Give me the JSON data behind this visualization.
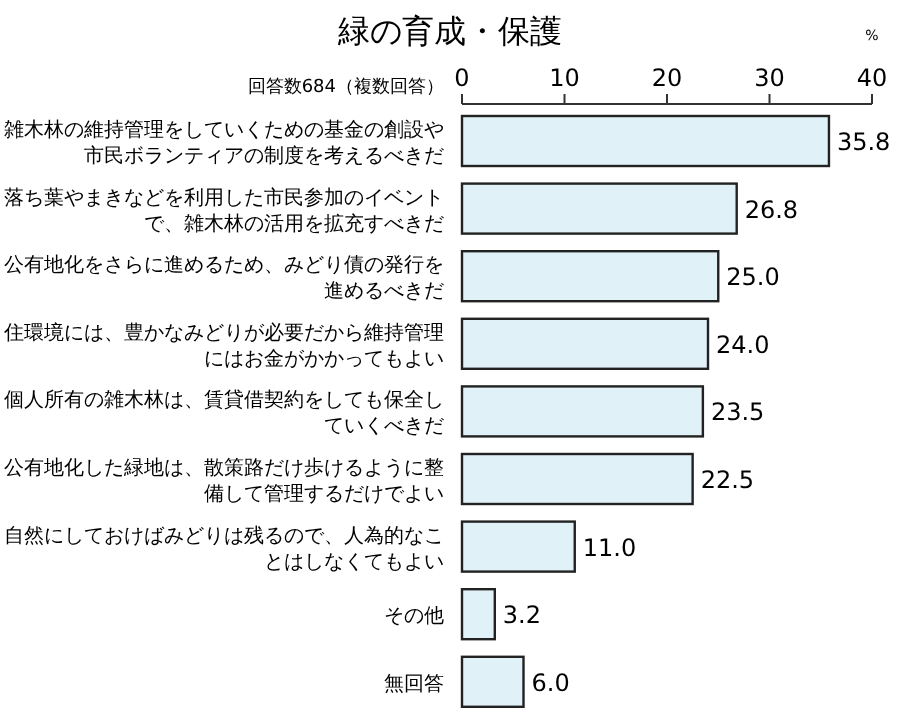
{
  "chart_data": {
    "type": "bar",
    "orientation": "horizontal",
    "title": "緑の育成・保護",
    "xlabel": "%",
    "annotations": [
      "回答数684（複数回答）"
    ],
    "categories": [
      "雑木林の維持管理をしていくための基金の創設や市民ボランティアの制度を考えるべきだ",
      "落ち葉やまきなどを利用した市民参加のイベントで、雑木林の活用を拡充すべきだ",
      "公有地化をさらに進めるため、みどり債の発行を進めるべきだ",
      "住環境には、豊かなみどりが必要だから維持管理にはお金がかかってもよい",
      "個人所有の雑木林は、賃貸借契約をしても保全していくべきだ",
      "公有地化した緑地は、散策路だけ歩けるように整備して管理するだけでよい",
      "自然にしておけばみどりは残るので、人為的なことはしなくてもよい",
      "その他",
      "無回答"
    ],
    "values": [
      35.8,
      26.8,
      25.0,
      24.0,
      23.5,
      22.5,
      11.0,
      3.2,
      6.0
    ],
    "value_labels": [
      "35.8",
      "26.8",
      "25.0",
      "24.0",
      "23.5",
      "22.5",
      "11.0",
      "3.2",
      "6.0"
    ],
    "color": "#e0f2f8",
    "xlim": [
      0,
      40
    ],
    "xticks": [
      0,
      10,
      20,
      30,
      40
    ],
    "grid": false
  }
}
